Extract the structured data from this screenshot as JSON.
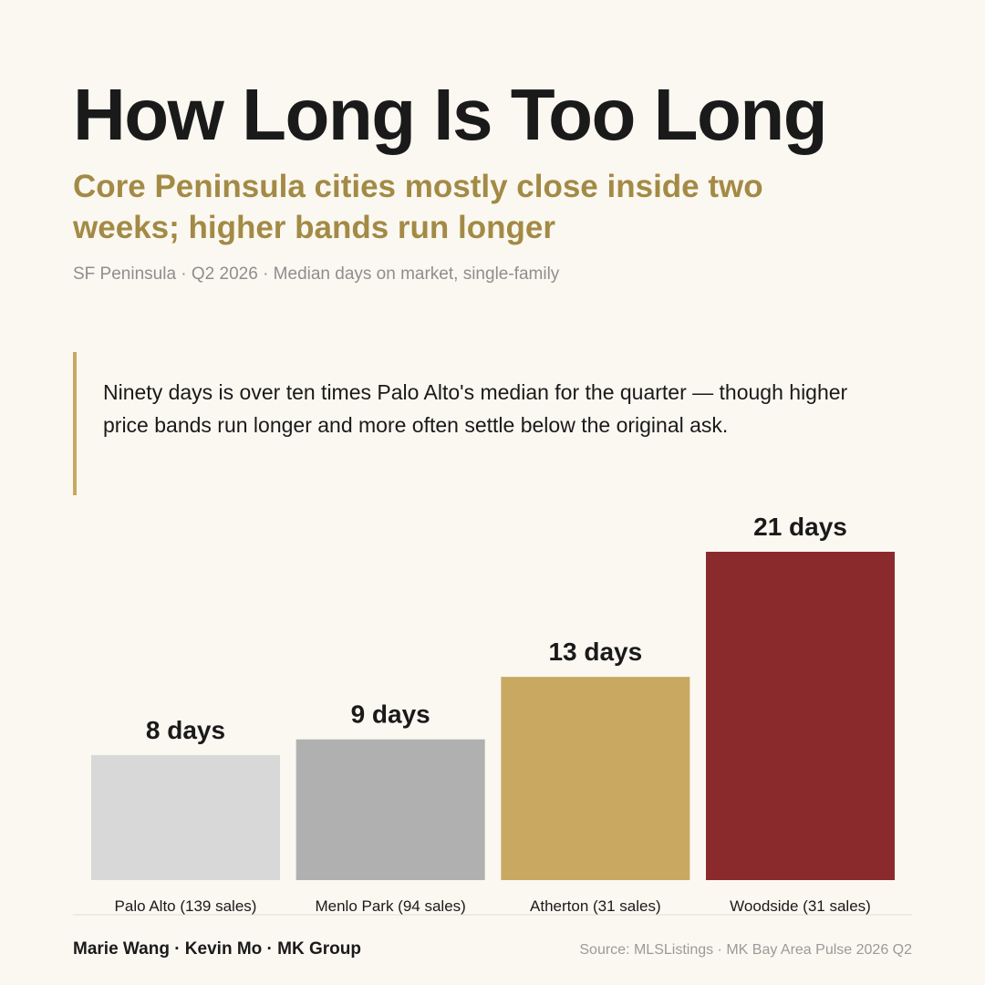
{
  "header": {
    "title": "How Long Is Too Long",
    "subtitle": "Core Peninsula cities mostly close inside two weeks; higher bands run longer",
    "meta": "SF Peninsula · Q2 2026 · Median days on market, single-family"
  },
  "callout": {
    "text": "Ninety days is over ten times Palo Alto's median for the quarter — though higher price bands run longer and more often settle below the original ask."
  },
  "chart_data": {
    "type": "bar",
    "categories": [
      "Palo Alto (139 sales)",
      "Menlo Park (94 sales)",
      "Atherton (31 sales)",
      "Woodside (31 sales)"
    ],
    "values": [
      8,
      9,
      13,
      21
    ],
    "data_labels": [
      "8 days",
      "9 days",
      "13 days",
      "21 days"
    ],
    "colors": [
      "#D8D8D8",
      "#B0B0B0",
      "#C9A862",
      "#8A2A2D"
    ],
    "grid": false,
    "legend": "none"
  },
  "footer": {
    "credits": "Marie Wang · Kevin Mo · MK Group",
    "source": "Source: MLSListings · MK Bay Area Pulse 2026 Q2"
  },
  "colors": {
    "background": "#FBF8F1",
    "accent": "#A38A45",
    "callout_rule": "#C9A862"
  }
}
